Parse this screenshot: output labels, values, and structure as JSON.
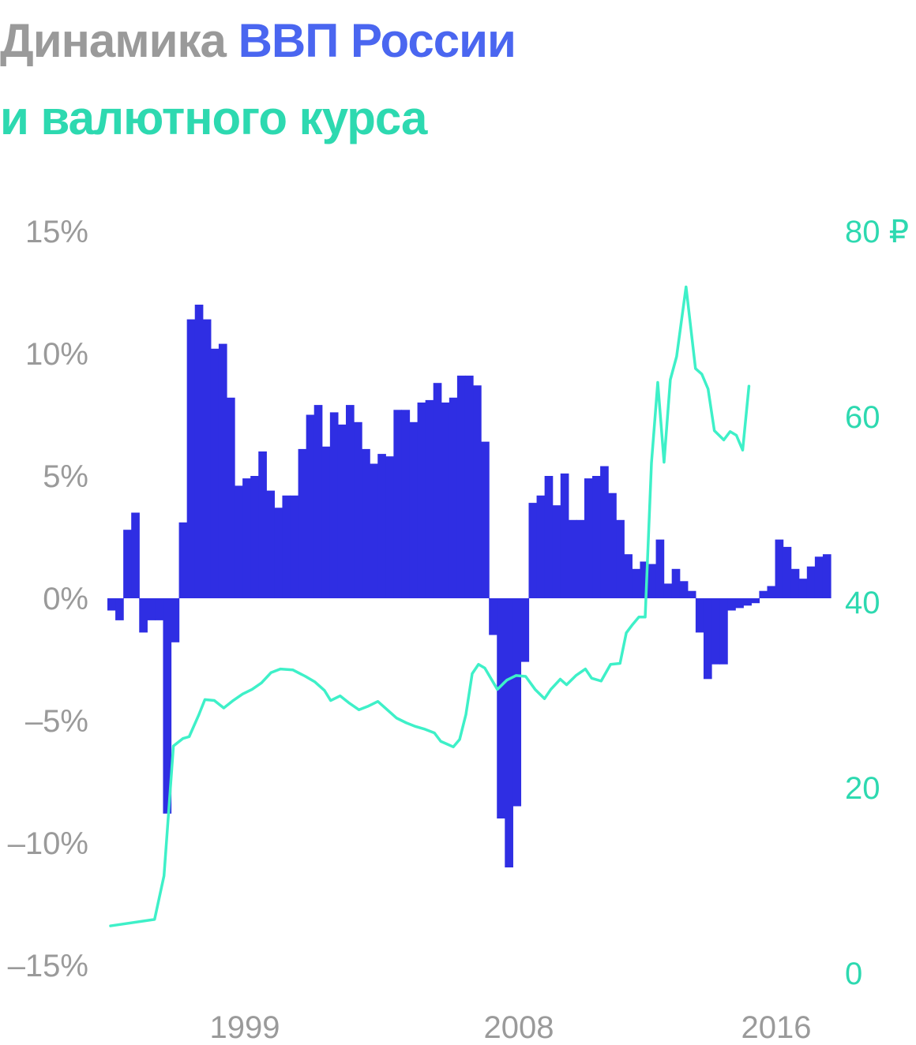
{
  "title": {
    "part1": "Динамика",
    "part2": "ВВП России",
    "part3": "и валютного курса"
  },
  "colors": {
    "title_gray": "#9a9a9a",
    "title_blue": "#4a66f0",
    "title_green": "#2dd9b0",
    "bars": "#2f2ee3",
    "line": "#3ef0c8",
    "left_ticks": "#9a9a9a",
    "right_ticks": "#2dd9b0"
  },
  "chart_data": {
    "type": "bar",
    "left_axis": {
      "ylim": [
        -15,
        15
      ],
      "tick_labels": [
        "15%",
        "10%",
        "5%",
        "0%",
        "–5%",
        "–10%",
        "–15%"
      ],
      "tick_values": [
        15,
        10,
        5,
        0,
        -5,
        -10,
        -15
      ]
    },
    "right_axis": {
      "ylim": [
        0,
        80
      ],
      "tick_labels": [
        "80 ₽",
        "60",
        "40",
        "20",
        "0"
      ],
      "tick_values": [
        80,
        60,
        40,
        20,
        0
      ]
    },
    "x_tick_labels": [
      "1999",
      "2008",
      "2016"
    ],
    "xlim": [
      1995.9,
      2018.9
    ],
    "series": [
      {
        "name": "ВВП России",
        "kind": "bar",
        "quarters": [
          1996.0,
          1996.25,
          1996.5,
          1996.75,
          1997.0,
          1997.25,
          1997.5,
          1997.75,
          1998.0,
          1998.25,
          1998.5,
          1998.75,
          1999.0,
          1999.25,
          1999.5,
          1999.75,
          2000.0,
          2000.25,
          2000.5,
          2000.75,
          2001.0,
          2001.25,
          2001.5,
          2001.75,
          2002.0,
          2002.25,
          2002.5,
          2002.75,
          2003.0,
          2003.25,
          2003.5,
          2003.75,
          2004.0,
          2004.25,
          2004.5,
          2004.75,
          2005.0,
          2005.25,
          2005.5,
          2005.75,
          2006.0,
          2006.25,
          2006.5,
          2006.75,
          2007.0,
          2007.25,
          2007.5,
          2007.75,
          2008.0,
          2008.25,
          2008.5,
          2008.75,
          2009.0,
          2009.25,
          2009.5,
          2009.75,
          2010.0,
          2010.25,
          2010.5,
          2010.75,
          2011.0,
          2011.25,
          2011.5,
          2011.75,
          2012.0,
          2012.25,
          2012.5,
          2012.75,
          2013.0,
          2013.25,
          2013.5,
          2013.75,
          2014.0,
          2014.25,
          2014.5,
          2014.75,
          2015.0,
          2015.25,
          2015.5,
          2015.75,
          2016.0,
          2016.25,
          2016.5,
          2016.75,
          2017.0,
          2017.25,
          2017.5,
          2017.75,
          2018.0,
          2018.25,
          2018.5
        ],
        "values": [
          -0.5,
          -0.9,
          2.8,
          3.5,
          -1.4,
          -0.9,
          -0.9,
          -8.8,
          -1.8,
          3.1,
          11.4,
          12.0,
          11.4,
          10.2,
          10.4,
          8.2,
          4.6,
          4.9,
          5.0,
          6.0,
          4.4,
          3.7,
          4.2,
          4.2,
          6.1,
          7.5,
          7.9,
          6.2,
          7.6,
          7.1,
          7.9,
          7.2,
          6.1,
          5.5,
          5.9,
          5.8,
          7.7,
          7.7,
          7.2,
          8.0,
          8.1,
          8.8,
          8.0,
          8.2,
          9.1,
          9.1,
          8.7,
          6.4,
          -1.5,
          -9.0,
          -11.0,
          -8.5,
          -2.6,
          3.9,
          4.2,
          5.0,
          3.8,
          5.1,
          3.2,
          3.2,
          4.9,
          5.0,
          5.4,
          4.3,
          3.2,
          1.8,
          1.2,
          1.5,
          1.4,
          2.4,
          0.6,
          1.2,
          0.7,
          0.3,
          -1.4,
          -3.3,
          -2.7,
          -2.7,
          -0.5,
          -0.4,
          -0.3,
          -0.2,
          0.3,
          0.5,
          2.4,
          2.1,
          1.2,
          0.8,
          1.3,
          1.7,
          1.8
        ]
      },
      {
        "name": "Валютный курс",
        "kind": "line",
        "points": [
          [
            1996.0,
            5.1
          ],
          [
            1997.4,
            5.8
          ],
          [
            1997.7,
            10.5
          ],
          [
            1998.0,
            24.5
          ],
          [
            1998.3,
            25.3
          ],
          [
            1998.5,
            25.5
          ],
          [
            1998.8,
            27.8
          ],
          [
            1999.0,
            29.5
          ],
          [
            1999.3,
            29.4
          ],
          [
            1999.6,
            28.6
          ],
          [
            1999.9,
            29.4
          ],
          [
            2000.2,
            30.1
          ],
          [
            2000.5,
            30.6
          ],
          [
            2000.8,
            31.3
          ],
          [
            2001.1,
            32.4
          ],
          [
            2001.4,
            32.8
          ],
          [
            2001.8,
            32.7
          ],
          [
            2002.2,
            32.0
          ],
          [
            2002.5,
            31.4
          ],
          [
            2002.8,
            30.5
          ],
          [
            2003.0,
            29.4
          ],
          [
            2003.3,
            29.9
          ],
          [
            2003.6,
            29.1
          ],
          [
            2003.9,
            28.4
          ],
          [
            2004.2,
            28.8
          ],
          [
            2004.5,
            29.3
          ],
          [
            2004.8,
            28.4
          ],
          [
            2005.1,
            27.5
          ],
          [
            2005.4,
            27.0
          ],
          [
            2005.7,
            26.6
          ],
          [
            2006.0,
            26.3
          ],
          [
            2006.3,
            25.9
          ],
          [
            2006.5,
            25.0
          ],
          [
            2006.7,
            24.7
          ],
          [
            2006.9,
            24.4
          ],
          [
            2007.1,
            25.2
          ],
          [
            2007.3,
            27.9
          ],
          [
            2007.5,
            32.3
          ],
          [
            2007.7,
            33.3
          ],
          [
            2007.9,
            32.9
          ],
          [
            2008.3,
            30.6
          ],
          [
            2008.6,
            31.6
          ],
          [
            2008.9,
            32.1
          ],
          [
            2009.2,
            32.0
          ],
          [
            2009.5,
            30.6
          ],
          [
            2009.8,
            29.6
          ],
          [
            2010.0,
            30.6
          ],
          [
            2010.3,
            31.7
          ],
          [
            2010.5,
            31.1
          ],
          [
            2010.8,
            32.1
          ],
          [
            2011.1,
            32.8
          ],
          [
            2011.3,
            31.8
          ],
          [
            2011.6,
            31.5
          ],
          [
            2011.9,
            33.3
          ],
          [
            2012.2,
            33.4
          ],
          [
            2012.4,
            36.7
          ],
          [
            2012.6,
            37.6
          ],
          [
            2012.8,
            38.4
          ],
          [
            2013.0,
            38.4
          ],
          [
            2013.2,
            55.0
          ],
          [
            2013.4,
            63.7
          ],
          [
            2013.6,
            55.1
          ],
          [
            2013.8,
            64.0
          ],
          [
            2014.0,
            66.5
          ],
          [
            2014.3,
            74.0
          ],
          [
            2014.6,
            65.2
          ],
          [
            2014.8,
            64.6
          ],
          [
            2015.0,
            63.0
          ],
          [
            2015.2,
            58.5
          ],
          [
            2015.5,
            57.5
          ],
          [
            2015.7,
            58.4
          ],
          [
            2015.9,
            58.0
          ],
          [
            2016.1,
            56.4
          ],
          [
            2016.3,
            63.3
          ]
        ]
      }
    ]
  }
}
